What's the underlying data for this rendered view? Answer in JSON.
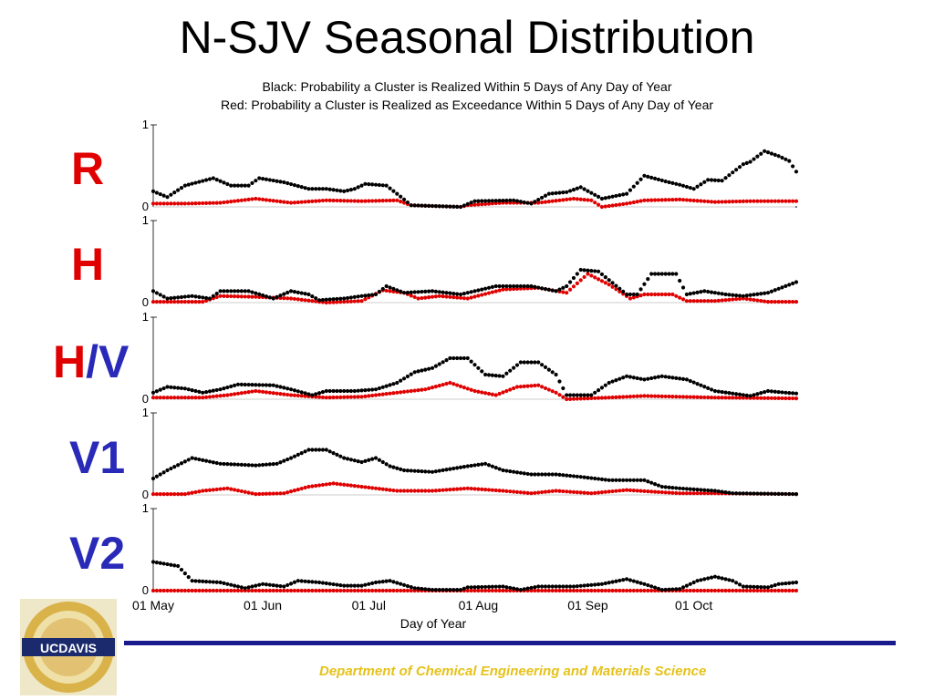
{
  "title": "N-SJV Seasonal Distribution",
  "subtitle_lines": [
    "Black: Probability a Cluster is Realized Within 5 Days of Any Day of Year",
    "Red: Probability a Cluster is Realized as Exceedance Within 5 Days of Any Day of Year"
  ],
  "footer": "Department of Chemical Engineering and Materials Science",
  "logo": {
    "text": "UCDAVIS",
    "colors": {
      "gold": "#d9b24a",
      "navy": "#1a2a6c"
    }
  },
  "colors": {
    "black_series": "#000000",
    "red_series": "#e00000",
    "rule": "#1a1a8c",
    "footer": "#e6c21a"
  },
  "chart_data": {
    "type": "scatter",
    "xlabel": "Day of Year",
    "x_ticks": [
      "01 May",
      "01 Jun",
      "01 Jul",
      "01 Aug",
      "01 Sep",
      "01 Oct"
    ],
    "x_tick_days": [
      1,
      32,
      62,
      93,
      124,
      154
    ],
    "x_range": [
      1,
      183
    ],
    "ylim": [
      0,
      1
    ],
    "y_ticks": [
      "0",
      "1"
    ],
    "panels": [
      {
        "label": "R",
        "label_color": "#e00000",
        "black_keyframes": [
          [
            1,
            0.19
          ],
          [
            5,
            0.12
          ],
          [
            10,
            0.26
          ],
          [
            18,
            0.35
          ],
          [
            23,
            0.26
          ],
          [
            28,
            0.26
          ],
          [
            31,
            0.35
          ],
          [
            38,
            0.3
          ],
          [
            45,
            0.22
          ],
          [
            50,
            0.22
          ],
          [
            55,
            0.19
          ],
          [
            58,
            0.22
          ],
          [
            61,
            0.28
          ],
          [
            67,
            0.26
          ],
          [
            70,
            0.16
          ],
          [
            74,
            0.02
          ],
          [
            88,
            0.0
          ],
          [
            92,
            0.07
          ],
          [
            103,
            0.08
          ],
          [
            108,
            0.04
          ],
          [
            113,
            0.16
          ],
          [
            118,
            0.18
          ],
          [
            122,
            0.24
          ],
          [
            128,
            0.1
          ],
          [
            135,
            0.16
          ],
          [
            140,
            0.38
          ],
          [
            147,
            0.3
          ],
          [
            150,
            0.27
          ],
          [
            154,
            0.22
          ],
          [
            158,
            0.33
          ],
          [
            162,
            0.32
          ],
          [
            168,
            0.52
          ],
          [
            170,
            0.55
          ],
          [
            174,
            0.68
          ],
          [
            178,
            0.62
          ],
          [
            181,
            0.56
          ],
          [
            183,
            0.43
          ]
        ],
        "red_keyframes": [
          [
            1,
            0.04
          ],
          [
            10,
            0.04
          ],
          [
            20,
            0.05
          ],
          [
            30,
            0.1
          ],
          [
            40,
            0.05
          ],
          [
            50,
            0.08
          ],
          [
            60,
            0.07
          ],
          [
            70,
            0.08
          ],
          [
            74,
            0.02
          ],
          [
            88,
            0.0
          ],
          [
            90,
            0.02
          ],
          [
            100,
            0.05
          ],
          [
            110,
            0.05
          ],
          [
            120,
            0.1
          ],
          [
            125,
            0.08
          ],
          [
            128,
            0.0
          ],
          [
            135,
            0.04
          ],
          [
            140,
            0.08
          ],
          [
            150,
            0.09
          ],
          [
            160,
            0.06
          ],
          [
            170,
            0.07
          ],
          [
            183,
            0.07
          ]
        ]
      },
      {
        "label": "H",
        "label_color": "#e00000",
        "black_keyframes": [
          [
            1,
            0.14
          ],
          [
            5,
            0.05
          ],
          [
            12,
            0.08
          ],
          [
            17,
            0.05
          ],
          [
            20,
            0.14
          ],
          [
            28,
            0.14
          ],
          [
            35,
            0.05
          ],
          [
            40,
            0.14
          ],
          [
            45,
            0.1
          ],
          [
            48,
            0.03
          ],
          [
            55,
            0.05
          ],
          [
            60,
            0.08
          ],
          [
            64,
            0.1
          ],
          [
            67,
            0.2
          ],
          [
            72,
            0.12
          ],
          [
            80,
            0.14
          ],
          [
            88,
            0.1
          ],
          [
            92,
            0.14
          ],
          [
            98,
            0.2
          ],
          [
            108,
            0.2
          ],
          [
            115,
            0.14
          ],
          [
            118,
            0.2
          ],
          [
            122,
            0.4
          ],
          [
            127,
            0.38
          ],
          [
            135,
            0.1
          ],
          [
            138,
            0.1
          ],
          [
            142,
            0.35
          ],
          [
            149,
            0.35
          ],
          [
            152,
            0.1
          ],
          [
            157,
            0.14
          ],
          [
            163,
            0.1
          ],
          [
            168,
            0.08
          ],
          [
            175,
            0.12
          ],
          [
            183,
            0.25
          ]
        ],
        "red_keyframes": [
          [
            1,
            0.01
          ],
          [
            15,
            0.01
          ],
          [
            20,
            0.08
          ],
          [
            30,
            0.07
          ],
          [
            40,
            0.05
          ],
          [
            50,
            0.0
          ],
          [
            60,
            0.02
          ],
          [
            66,
            0.15
          ],
          [
            72,
            0.12
          ],
          [
            76,
            0.05
          ],
          [
            82,
            0.08
          ],
          [
            90,
            0.05
          ],
          [
            100,
            0.16
          ],
          [
            110,
            0.18
          ],
          [
            118,
            0.12
          ],
          [
            124,
            0.35
          ],
          [
            130,
            0.22
          ],
          [
            136,
            0.05
          ],
          [
            140,
            0.1
          ],
          [
            148,
            0.1
          ],
          [
            152,
            0.02
          ],
          [
            160,
            0.02
          ],
          [
            168,
            0.05
          ],
          [
            175,
            0.01
          ],
          [
            183,
            0.01
          ]
        ]
      },
      {
        "label": "H/V",
        "label_color": "#e00000",
        "label_color_2": "#2a2ab8",
        "black_keyframes": [
          [
            1,
            0.08
          ],
          [
            5,
            0.15
          ],
          [
            10,
            0.13
          ],
          [
            15,
            0.08
          ],
          [
            20,
            0.12
          ],
          [
            25,
            0.18
          ],
          [
            35,
            0.17
          ],
          [
            40,
            0.12
          ],
          [
            46,
            0.05
          ],
          [
            50,
            0.1
          ],
          [
            58,
            0.1
          ],
          [
            64,
            0.12
          ],
          [
            70,
            0.2
          ],
          [
            75,
            0.33
          ],
          [
            80,
            0.38
          ],
          [
            85,
            0.5
          ],
          [
            90,
            0.5
          ],
          [
            95,
            0.3
          ],
          [
            100,
            0.28
          ],
          [
            105,
            0.45
          ],
          [
            110,
            0.45
          ],
          [
            115,
            0.3
          ],
          [
            118,
            0.05
          ],
          [
            125,
            0.05
          ],
          [
            130,
            0.2
          ],
          [
            135,
            0.28
          ],
          [
            140,
            0.24
          ],
          [
            145,
            0.28
          ],
          [
            152,
            0.24
          ],
          [
            160,
            0.1
          ],
          [
            170,
            0.04
          ],
          [
            175,
            0.1
          ],
          [
            180,
            0.08
          ],
          [
            183,
            0.07
          ]
        ],
        "red_keyframes": [
          [
            1,
            0.02
          ],
          [
            15,
            0.02
          ],
          [
            22,
            0.05
          ],
          [
            30,
            0.1
          ],
          [
            40,
            0.05
          ],
          [
            50,
            0.02
          ],
          [
            60,
            0.03
          ],
          [
            70,
            0.08
          ],
          [
            78,
            0.12
          ],
          [
            85,
            0.2
          ],
          [
            92,
            0.1
          ],
          [
            98,
            0.05
          ],
          [
            104,
            0.15
          ],
          [
            110,
            0.17
          ],
          [
            115,
            0.08
          ],
          [
            118,
            0.0
          ],
          [
            130,
            0.02
          ],
          [
            140,
            0.04
          ],
          [
            150,
            0.03
          ],
          [
            160,
            0.02
          ],
          [
            183,
            0.01
          ]
        ]
      },
      {
        "label": "V1",
        "label_color": "#2a2ab8",
        "black_keyframes": [
          [
            1,
            0.2
          ],
          [
            5,
            0.3
          ],
          [
            12,
            0.45
          ],
          [
            20,
            0.38
          ],
          [
            30,
            0.36
          ],
          [
            36,
            0.38
          ],
          [
            40,
            0.45
          ],
          [
            45,
            0.55
          ],
          [
            50,
            0.55
          ],
          [
            55,
            0.45
          ],
          [
            60,
            0.4
          ],
          [
            64,
            0.45
          ],
          [
            68,
            0.35
          ],
          [
            72,
            0.3
          ],
          [
            80,
            0.28
          ],
          [
            90,
            0.35
          ],
          [
            95,
            0.38
          ],
          [
            100,
            0.3
          ],
          [
            108,
            0.25
          ],
          [
            115,
            0.25
          ],
          [
            122,
            0.22
          ],
          [
            130,
            0.18
          ],
          [
            140,
            0.18
          ],
          [
            145,
            0.1
          ],
          [
            150,
            0.08
          ],
          [
            160,
            0.05
          ],
          [
            165,
            0.02
          ],
          [
            183,
            0.01
          ]
        ],
        "red_keyframes": [
          [
            1,
            0.01
          ],
          [
            10,
            0.01
          ],
          [
            15,
            0.05
          ],
          [
            22,
            0.08
          ],
          [
            30,
            0.01
          ],
          [
            38,
            0.02
          ],
          [
            45,
            0.1
          ],
          [
            52,
            0.14
          ],
          [
            60,
            0.1
          ],
          [
            70,
            0.05
          ],
          [
            80,
            0.05
          ],
          [
            90,
            0.08
          ],
          [
            100,
            0.05
          ],
          [
            108,
            0.02
          ],
          [
            115,
            0.05
          ],
          [
            125,
            0.02
          ],
          [
            135,
            0.06
          ],
          [
            142,
            0.04
          ],
          [
            150,
            0.02
          ],
          [
            160,
            0.02
          ],
          [
            183,
            0.01
          ]
        ]
      },
      {
        "label": "V2",
        "label_color": "#2a2ab8",
        "black_keyframes": [
          [
            1,
            0.35
          ],
          [
            8,
            0.3
          ],
          [
            12,
            0.12
          ],
          [
            20,
            0.1
          ],
          [
            27,
            0.03
          ],
          [
            32,
            0.08
          ],
          [
            38,
            0.05
          ],
          [
            42,
            0.12
          ],
          [
            48,
            0.1
          ],
          [
            55,
            0.06
          ],
          [
            60,
            0.06
          ],
          [
            64,
            0.1
          ],
          [
            68,
            0.12
          ],
          [
            75,
            0.03
          ],
          [
            80,
            0.01
          ],
          [
            88,
            0.01
          ],
          [
            90,
            0.04
          ],
          [
            100,
            0.05
          ],
          [
            105,
            0.01
          ],
          [
            110,
            0.05
          ],
          [
            120,
            0.05
          ],
          [
            128,
            0.08
          ],
          [
            135,
            0.14
          ],
          [
            140,
            0.08
          ],
          [
            145,
            0.01
          ],
          [
            150,
            0.02
          ],
          [
            155,
            0.12
          ],
          [
            160,
            0.17
          ],
          [
            165,
            0.12
          ],
          [
            168,
            0.05
          ],
          [
            175,
            0.04
          ],
          [
            178,
            0.08
          ],
          [
            183,
            0.1
          ]
        ],
        "red_keyframes": [
          [
            1,
            0.0
          ],
          [
            183,
            0.0
          ]
        ]
      }
    ]
  }
}
